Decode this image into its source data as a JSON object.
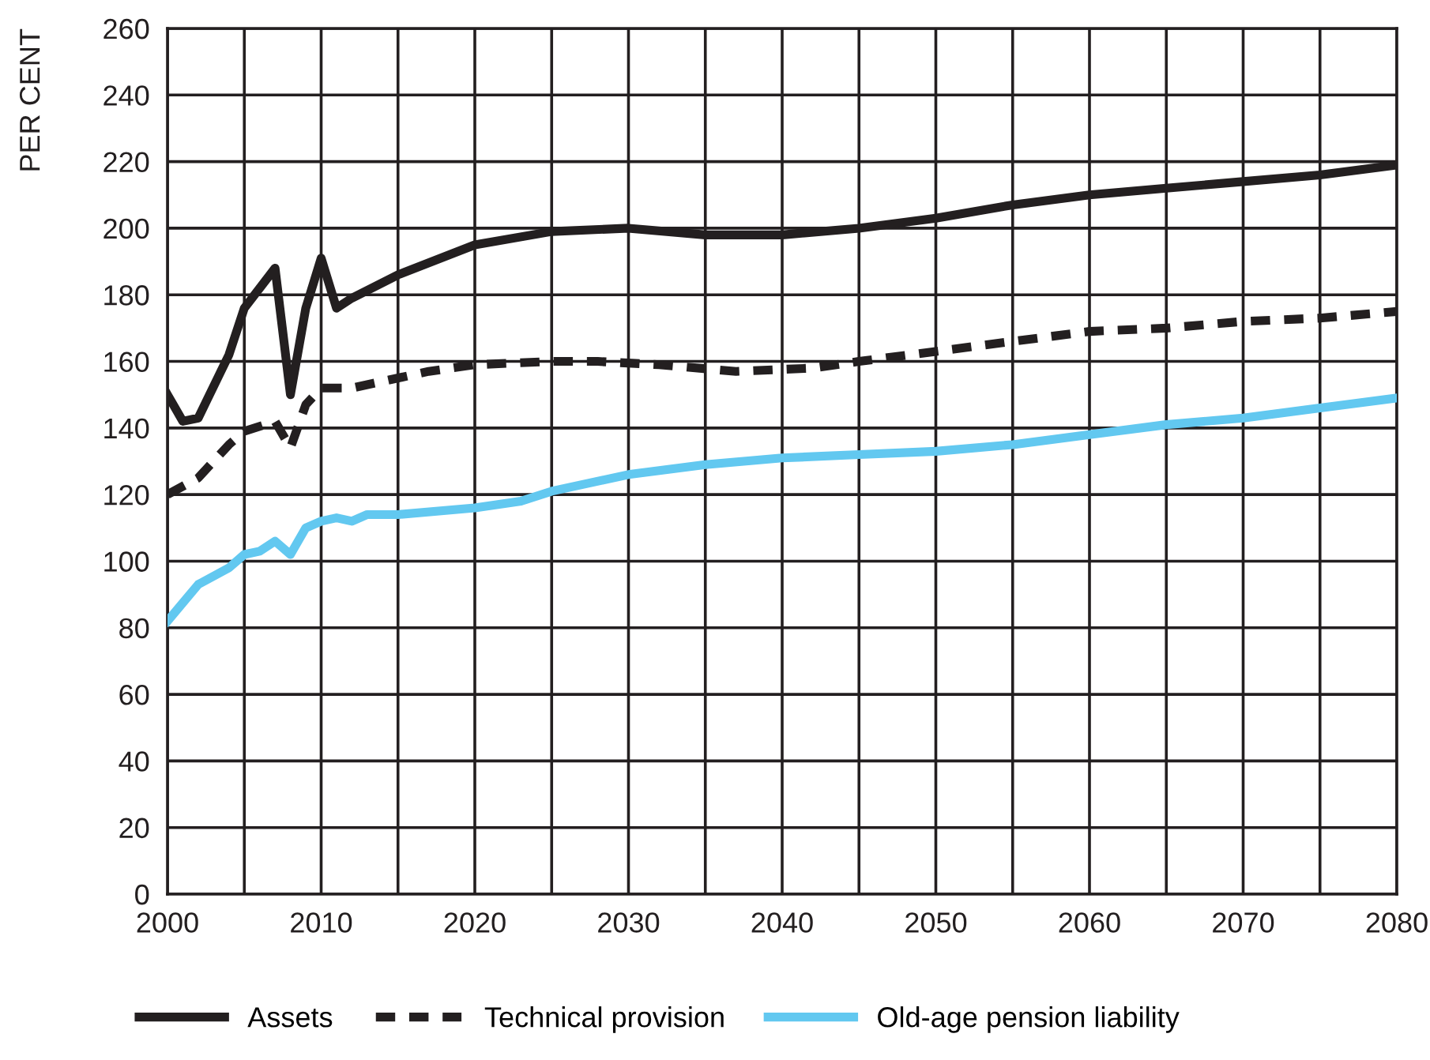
{
  "chart_data": {
    "type": "line",
    "ylabel": "PER CENT",
    "xlim": [
      2000,
      2080
    ],
    "ylim": [
      0,
      260
    ],
    "xticks": [
      2000,
      {
        "value": 2005,
        "label": null
      },
      2010,
      {
        "value": 2015,
        "label": null
      },
      2020,
      {
        "value": 2025,
        "label": null
      },
      2030,
      {
        "value": 2035,
        "label": null
      },
      2040,
      {
        "value": 2045,
        "label": null
      },
      2050,
      {
        "value": 2055,
        "label": null
      },
      2060,
      {
        "value": 2065,
        "label": null
      },
      2070,
      {
        "value": 2075,
        "label": null
      },
      2080
    ],
    "yticks": [
      0,
      20,
      40,
      60,
      80,
      100,
      120,
      140,
      160,
      180,
      200,
      220,
      240,
      260
    ],
    "grid": true,
    "legend": "bottom",
    "marker": "none",
    "series": [
      {
        "name": "Assets",
        "color": "#231f20",
        "line_style": "solid",
        "x": [
          2000,
          2001,
          2002,
          2004,
          2005,
          2007,
          2008,
          2009,
          2010,
          2011,
          2012,
          2015,
          2020,
          2025,
          2030,
          2035,
          2040,
          2045,
          2050,
          2055,
          2060,
          2065,
          2070,
          2075,
          2080
        ],
        "values": [
          150,
          142,
          143,
          162,
          176,
          188,
          150,
          176,
          191,
          176,
          179,
          186,
          195,
          199,
          200,
          198,
          198,
          200,
          203,
          207,
          210,
          212,
          214,
          216,
          219
        ]
      },
      {
        "name": "Technical provision",
        "color": "#231f20",
        "line_style": "dashed",
        "x": [
          2000,
          2002,
          2004,
          2005,
          2007,
          2008,
          2009,
          2010,
          2012,
          2014,
          2017,
          2020,
          2025,
          2028,
          2032,
          2037,
          2042,
          2045,
          2050,
          2055,
          2060,
          2065,
          2070,
          2075,
          2080
        ],
        "values": [
          120,
          125,
          135,
          139,
          142,
          134,
          147,
          152,
          152,
          154,
          157,
          159,
          160,
          160,
          159,
          157,
          158,
          160,
          163,
          166,
          169,
          170,
          172,
          173,
          175
        ]
      },
      {
        "name": "Old-age pension liability",
        "color": "#62c8f0",
        "line_style": "solid",
        "x": [
          2000,
          2002,
          2004,
          2005,
          2006,
          2007,
          2008,
          2009,
          2010,
          2011,
          2012,
          2013,
          2015,
          2020,
          2023,
          2025,
          2030,
          2035,
          2040,
          2045,
          2050,
          2055,
          2060,
          2065,
          2070,
          2075,
          2080
        ],
        "values": [
          82,
          93,
          98,
          102,
          103,
          106,
          102,
          110,
          112,
          113,
          112,
          114,
          114,
          116,
          118,
          121,
          126,
          129,
          131,
          132,
          133,
          135,
          138,
          141,
          143,
          146,
          149
        ]
      }
    ]
  }
}
